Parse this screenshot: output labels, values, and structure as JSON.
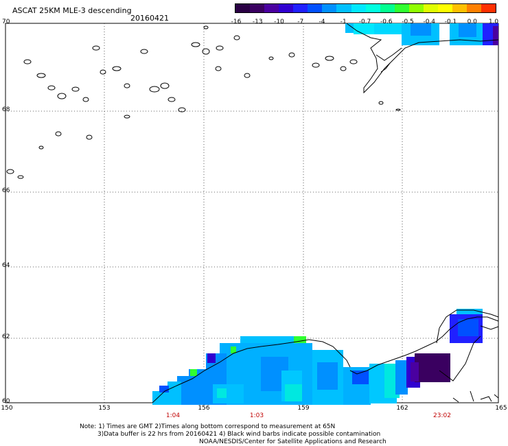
{
  "header": {
    "title": "ASCAT 25KM MLE-3 descending",
    "date": "20160421"
  },
  "colorbar": {
    "labels": [
      "-16",
      "-13",
      "-10",
      "-7",
      "-4",
      "-1",
      "-0.7",
      "-0.6",
      "-0.5",
      "-0.4",
      "-0.1",
      "0.0",
      "1.0"
    ],
    "colors": [
      "#2a0044",
      "#3a0060",
      "#4a00a0",
      "#3000d0",
      "#2020ff",
      "#0050ff",
      "#0090ff",
      "#00c0ff",
      "#00e8ff",
      "#00ffe0",
      "#00ff90",
      "#30ff30",
      "#90ff00",
      "#e0ff00",
      "#ffff00",
      "#ffc000",
      "#ff8000",
      "#ff3000"
    ]
  },
  "axes": {
    "lat_labels": [
      "70",
      "68",
      "66",
      "64",
      "62",
      "60"
    ],
    "lon_labels": [
      "150",
      "153",
      "156",
      "159",
      "162",
      "165"
    ]
  },
  "times": [
    "1:04",
    "1:03",
    "23:02"
  ],
  "notes": {
    "line1": "Note: 1) Times are GMT 2)Times along bottom correspond to measurement at 65N",
    "line2": "3)Data buffer is 22 hrs from 20160421 4) Black wind barbs indicate possible contamination",
    "line3": "NOAA/NESDIS/Center for Satellite Applications and Research"
  }
}
